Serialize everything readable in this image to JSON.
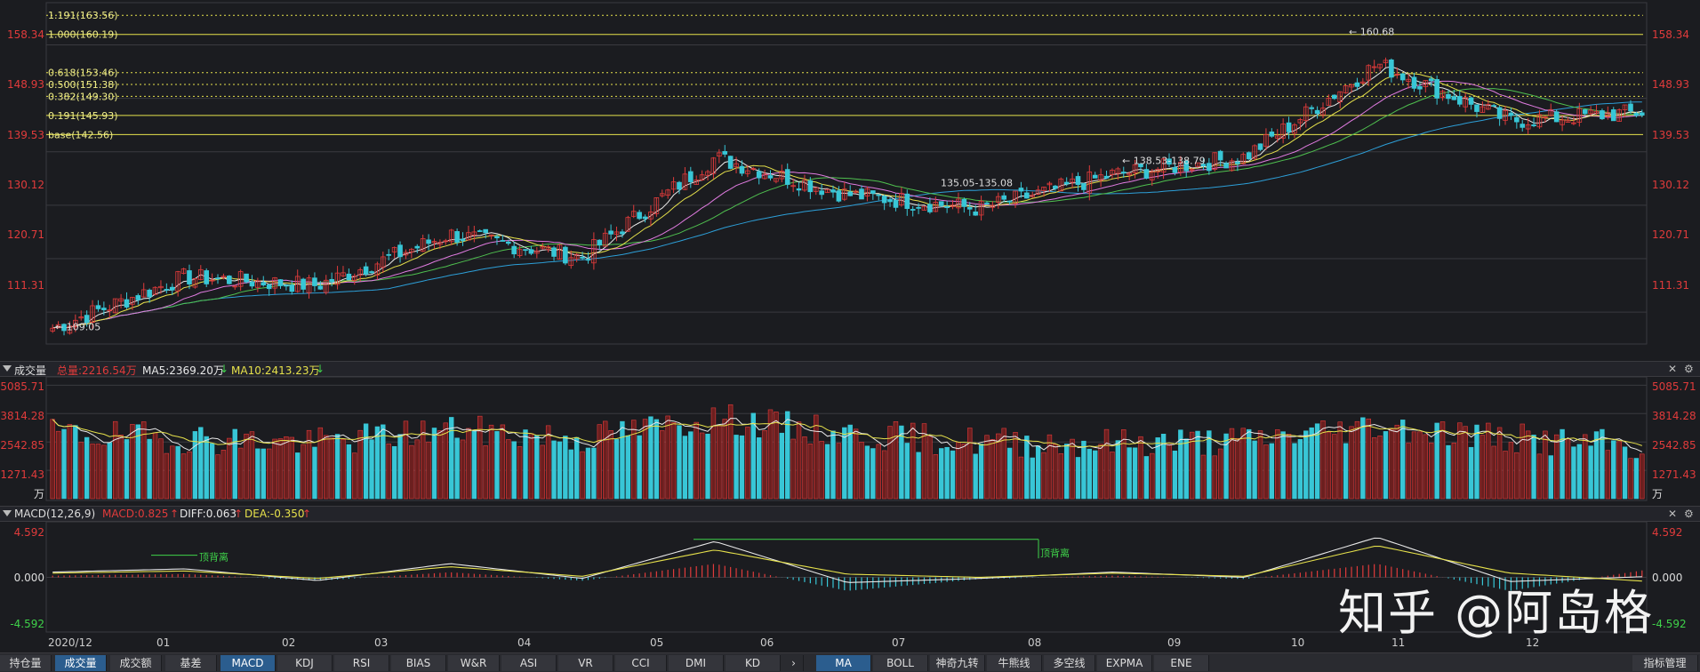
{
  "main_chart": {
    "yticks": [
      "158.34",
      "148.93",
      "139.53",
      "130.12",
      "120.71",
      "111.31"
    ],
    "fib_labels": [
      "1.191(163.56)",
      "1.000(160.19)",
      "0.618(153.46)",
      "0.500(151.38)",
      "0.382(149.30)",
      "0.191(145.93)",
      "base(142.56)"
    ],
    "annotations": [
      "160.68",
      "109.05",
      "135.05-135.08",
      "138.53-138.79"
    ],
    "colors": {
      "up": "#e03b3b",
      "down": "#38c6d6",
      "ma5": "#e8e8e8",
      "ma10": "#e6e14b",
      "ma20": "#e07be0",
      "ma30": "#4fc04f",
      "ma60": "#2d9fd8",
      "fib": "#e6e14b"
    }
  },
  "volume": {
    "title": "成交量",
    "total": "总量:2216.54万",
    "ma5": "MA5:2369.20万",
    "ma10": "MA10:2413.23万",
    "yticks": [
      "5085.71",
      "3814.28",
      "2542.85",
      "1271.43"
    ],
    "unit": "万"
  },
  "macd": {
    "title": "MACD(12,26,9)",
    "macd": "MACD:0.825",
    "diff": "DIFF:0.063",
    "dea": "DEA:-0.350",
    "yticks": [
      "4.592",
      "0.000",
      "-4.592"
    ],
    "divergence": [
      "顶背离",
      "顶背离"
    ]
  },
  "xaxis": [
    "2020/12",
    "01",
    "02",
    "03",
    "04",
    "05",
    "06",
    "07",
    "08",
    "09",
    "10",
    "11",
    "12"
  ],
  "tabs_left": [
    "持仓量",
    "成交量",
    "成交额",
    "基差",
    "MACD",
    "KDJ",
    "RSI",
    "BIAS",
    "W&R",
    "ASI",
    "VR",
    "CCI",
    "DMI",
    "KD"
  ],
  "tabs_right": [
    "MA",
    "BOLL",
    "神奇九转",
    "牛熊线",
    "多空线",
    "EXPMA",
    "ENE"
  ],
  "tab_manage": "指标管理",
  "watermark": "知乎 @阿岛格",
  "chart_data": [
    {
      "type": "candlestick",
      "title": "",
      "x": [
        "2020/12",
        "01",
        "02",
        "03",
        "04",
        "05",
        "06",
        "07",
        "08",
        "09",
        "10",
        "11",
        "12"
      ],
      "close_approx": [
        108.5,
        117.5,
        116.0,
        125.0,
        121.0,
        138.5,
        132.0,
        129.5,
        135.5,
        138.6,
        155.0,
        145.0,
        146.5
      ],
      "ylim": [
        106,
        165
      ],
      "fibonacci": {
        "1.191": 163.56,
        "1.000": 160.19,
        "0.618": 153.46,
        "0.500": 151.38,
        "0.382": 149.3,
        "0.191": 145.93,
        "base": 142.56
      },
      "high": 160.68,
      "low": 109.05
    },
    {
      "type": "bar",
      "title": "成交量",
      "x": [
        "2020/12",
        "01",
        "02",
        "03",
        "04",
        "05",
        "06",
        "07",
        "08",
        "09",
        "10",
        "11",
        "12"
      ],
      "values_approx": [
        2900,
        2700,
        2500,
        3100,
        2700,
        3600,
        2900,
        2550,
        2500,
        2600,
        3300,
        2700,
        2300
      ],
      "ylim": [
        0,
        5300
      ]
    },
    {
      "type": "line",
      "title": "MACD(12,26,9)",
      "x": [
        "2020/12",
        "01",
        "02",
        "03",
        "04",
        "05",
        "06",
        "07",
        "08",
        "09",
        "10",
        "11",
        "12"
      ],
      "series": [
        {
          "name": "DIFF",
          "values": [
            0.5,
            0.8,
            -0.3,
            1.3,
            -0.1,
            3.4,
            -0.5,
            -0.1,
            0.5,
            0.0,
            3.8,
            -0.4,
            0.06
          ]
        },
        {
          "name": "DEA",
          "values": [
            0.4,
            0.6,
            -0.1,
            1.0,
            0.1,
            2.6,
            0.3,
            0.0,
            0.4,
            0.1,
            3.0,
            0.4,
            -0.35
          ]
        }
      ],
      "ylim": [
        -4.592,
        4.592
      ]
    }
  ]
}
